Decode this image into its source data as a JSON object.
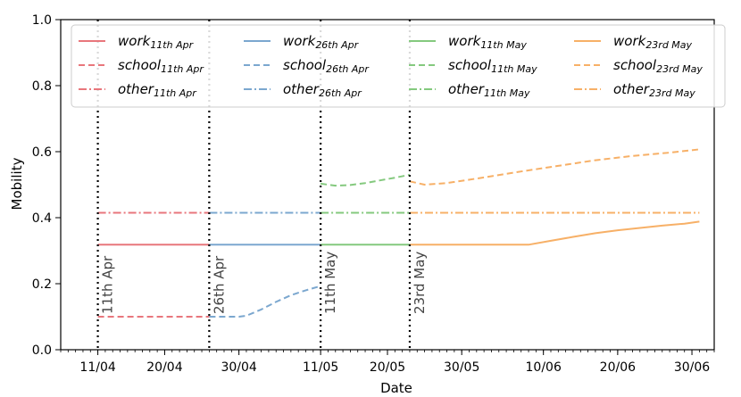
{
  "chart_data": {
    "type": "line",
    "xlabel": "Date",
    "ylabel": "Mobility",
    "ylim": [
      0.0,
      1.0
    ],
    "xlim": [
      "2020-04-06",
      "2020-07-03"
    ],
    "x_ticks": [
      {
        "date": "2020-04-11",
        "label": "11/04"
      },
      {
        "date": "2020-04-20",
        "label": "20/04"
      },
      {
        "date": "2020-04-30",
        "label": "30/04"
      },
      {
        "date": "2020-05-11",
        "label": "11/05"
      },
      {
        "date": "2020-05-20",
        "label": "20/05"
      },
      {
        "date": "2020-05-30",
        "label": "30/05"
      },
      {
        "date": "2020-06-10",
        "label": "10/06"
      },
      {
        "date": "2020-06-20",
        "label": "20/06"
      },
      {
        "date": "2020-06-30",
        "label": "30/06"
      }
    ],
    "y_ticks": [
      {
        "value": 0.0,
        "label": "0.0"
      },
      {
        "value": 0.2,
        "label": "0.2"
      },
      {
        "value": 0.4,
        "label": "0.4"
      },
      {
        "value": 0.6,
        "label": "0.6"
      },
      {
        "value": 0.8,
        "label": "0.8"
      },
      {
        "value": 1.0,
        "label": "1.0"
      }
    ],
    "grid": false,
    "legend_position": "top",
    "legend_columns": 4,
    "vertical_markers": [
      {
        "date": "2020-04-11",
        "label": "11th Apr"
      },
      {
        "date": "2020-04-26",
        "label": "26th Apr"
      },
      {
        "date": "2020-05-11",
        "label": "11th May"
      },
      {
        "date": "2020-05-23",
        "label": "23rd May"
      }
    ],
    "series": [
      {
        "name": "work",
        "sub": "11th Apr",
        "color": "#e8767c",
        "style": "solid",
        "x": [
          "2020-04-11",
          "2020-04-26"
        ],
        "y": [
          0.318,
          0.318
        ]
      },
      {
        "name": "school",
        "sub": "11th Apr",
        "color": "#e8767c",
        "style": "dashed",
        "x": [
          "2020-04-11",
          "2020-04-26"
        ],
        "y": [
          0.1,
          0.1
        ]
      },
      {
        "name": "other",
        "sub": "11th Apr",
        "color": "#e8767c",
        "style": "dashdot",
        "x": [
          "2020-04-11",
          "2020-04-26"
        ],
        "y": [
          0.415,
          0.415
        ]
      },
      {
        "name": "work",
        "sub": "26th Apr",
        "color": "#7ba7cf",
        "style": "solid",
        "x": [
          "2020-04-26",
          "2020-05-11"
        ],
        "y": [
          0.318,
          0.318
        ]
      },
      {
        "name": "school",
        "sub": "26th Apr",
        "color": "#7ba7cf",
        "style": "dashed",
        "x": [
          "2020-04-26",
          "2020-04-28",
          "2020-04-30",
          "2020-05-01",
          "2020-05-03",
          "2020-05-05",
          "2020-05-07",
          "2020-05-09",
          "2020-05-11"
        ],
        "y": [
          0.1,
          0.1,
          0.1,
          0.103,
          0.122,
          0.145,
          0.165,
          0.18,
          0.193
        ]
      },
      {
        "name": "other",
        "sub": "26th Apr",
        "color": "#7ba7cf",
        "style": "dashdot",
        "x": [
          "2020-04-26",
          "2020-05-11"
        ],
        "y": [
          0.415,
          0.415
        ]
      },
      {
        "name": "work",
        "sub": "11th May",
        "color": "#84c97e",
        "style": "solid",
        "x": [
          "2020-05-11",
          "2020-05-23"
        ],
        "y": [
          0.318,
          0.318
        ]
      },
      {
        "name": "school",
        "sub": "11th May",
        "color": "#84c97e",
        "style": "dashed",
        "x": [
          "2020-05-11",
          "2020-05-13",
          "2020-05-15",
          "2020-05-17",
          "2020-05-19",
          "2020-05-21",
          "2020-05-23"
        ],
        "y": [
          0.503,
          0.497,
          0.499,
          0.505,
          0.513,
          0.521,
          0.53
        ]
      },
      {
        "name": "other",
        "sub": "11th May",
        "color": "#84c97e",
        "style": "dashdot",
        "x": [
          "2020-05-11",
          "2020-05-23"
        ],
        "y": [
          0.415,
          0.415
        ]
      },
      {
        "name": "work",
        "sub": "23rd May",
        "color": "#f7b067",
        "style": "solid",
        "x": [
          "2020-05-23",
          "2020-06-06",
          "2020-06-08",
          "2020-06-11",
          "2020-06-14",
          "2020-06-17",
          "2020-06-20",
          "2020-06-23",
          "2020-06-26",
          "2020-06-29",
          "2020-07-01"
        ],
        "y": [
          0.318,
          0.318,
          0.318,
          0.33,
          0.342,
          0.353,
          0.362,
          0.369,
          0.376,
          0.382,
          0.388
        ]
      },
      {
        "name": "school",
        "sub": "23rd May",
        "color": "#f7b067",
        "style": "dashed",
        "x": [
          "2020-05-23",
          "2020-05-25",
          "2020-05-28",
          "2020-06-02",
          "2020-06-07",
          "2020-06-12",
          "2020-06-17",
          "2020-06-22",
          "2020-06-27",
          "2020-07-01"
        ],
        "y": [
          0.51,
          0.5,
          0.505,
          0.522,
          0.54,
          0.557,
          0.574,
          0.587,
          0.597,
          0.607
        ]
      },
      {
        "name": "other",
        "sub": "23rd May",
        "color": "#f7b067",
        "style": "dashdot",
        "x": [
          "2020-05-23",
          "2020-07-01"
        ],
        "y": [
          0.415,
          0.415
        ]
      }
    ]
  }
}
